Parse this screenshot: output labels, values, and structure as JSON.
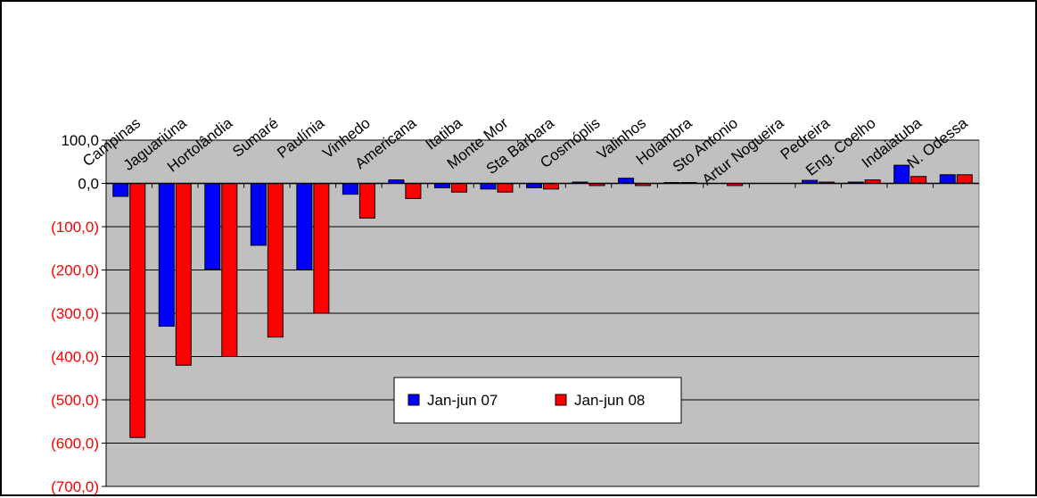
{
  "chart_data": {
    "type": "bar",
    "title": "",
    "xlabel": "",
    "ylabel": "",
    "ylim": [
      -700,
      100
    ],
    "y_ticks": [
      {
        "value": 100,
        "label": "100,0",
        "color": "#000000"
      },
      {
        "value": 0,
        "label": "0,0",
        "color": "#000000"
      },
      {
        "value": -100,
        "label": "(100,0)",
        "color": "#ff0000"
      },
      {
        "value": -200,
        "label": "(200,0)",
        "color": "#ff0000"
      },
      {
        "value": -300,
        "label": "(300,0)",
        "color": "#ff0000"
      },
      {
        "value": -400,
        "label": "(400,0)",
        "color": "#ff0000"
      },
      {
        "value": -500,
        "label": "(500,0)",
        "color": "#ff0000"
      },
      {
        "value": -600,
        "label": "(600,0)",
        "color": "#ff0000"
      },
      {
        "value": -700,
        "label": "(700,0)",
        "color": "#ff0000"
      }
    ],
    "categories": [
      "Campinas",
      "Jaguariúna",
      "Hortolândia",
      "Sumaré",
      "Paulínia",
      "Vinhedo",
      "Americana",
      "Itatiba",
      "Monte Mor",
      "Sta Bárbara",
      "Cosmóplis",
      "Valinhos",
      "Holambra",
      "Sto Antonio",
      "Artur Nogueira",
      "Pedreira",
      "Eng. Coelho",
      "Indaiatuba",
      "N. Odessa"
    ],
    "series": [
      {
        "name": "Jan-jun 07",
        "color": "#0000ff",
        "values": [
          -30,
          -330,
          -198,
          -143,
          -200,
          -25,
          8,
          -10,
          -13,
          -10,
          3,
          12,
          2,
          0,
          0,
          7,
          3,
          42,
          20
        ]
      },
      {
        "name": "Jan-jun 08",
        "color": "#ff0000",
        "values": [
          -587,
          -420,
          -400,
          -355,
          -300,
          -80,
          -35,
          -20,
          -20,
          -13,
          -5,
          -5,
          2,
          -5,
          0,
          3,
          8,
          16,
          20
        ]
      }
    ],
    "legend_position": "bottom-center inside plot",
    "grid": true,
    "plot_background": "#c0c0c0"
  }
}
